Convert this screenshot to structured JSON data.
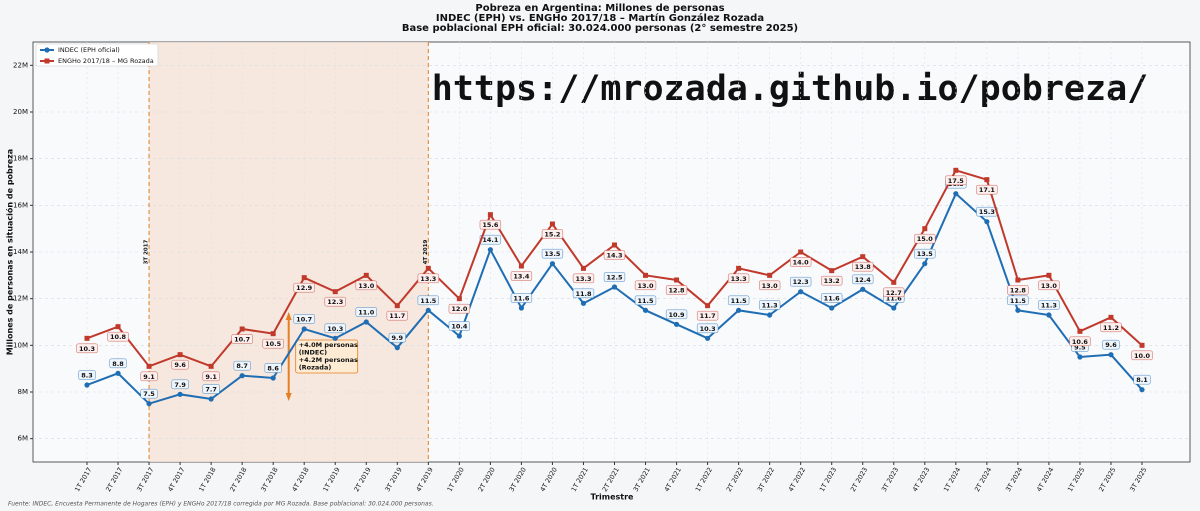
{
  "chart_data": {
    "type": "line",
    "title": "Pobreza en Argentina: Millones de personas",
    "subtitle": [
      "INDEC (EPH) vs. ENGHo 2017/18 – Martín González Rozada",
      "Base poblacional EPH oficial: 30.024.000 personas (2° semestre 2025)"
    ],
    "url": "https://mrozada.github.io/pobreza/",
    "xlabel": "Trimestre",
    "ylabel": "Millones de personas en situación de pobreza",
    "source": "Fuente: INDEC, Encuesta Permanente de Hogares (EPH) y ENGHo 2017/18 corregida por MG Rozada. Base poblacional: 30.024.000 personas.",
    "categories": [
      "1T 2017",
      "2T 2017",
      "3T 2017",
      "4T 2017",
      "1T 2018",
      "2T 2018",
      "3T 2018",
      "4T 2018",
      "1T 2019",
      "2T 2019",
      "3T 2019",
      "4T 2019",
      "1T 2020",
      "2T 2020",
      "3T 2020",
      "4T 2020",
      "1T 2021",
      "2T 2021",
      "3T 2021",
      "4T 2021",
      "1T 2022",
      "2T 2022",
      "3T 2022",
      "4T 2022",
      "1T 2023",
      "2T 2023",
      "3T 2023",
      "4T 2023",
      "1T 2024",
      "2T 2024",
      "3T 2024",
      "4T 2024",
      "1T 2025",
      "2T 2025",
      "3T 2025"
    ],
    "series": [
      {
        "name": "INDEC (EPH oficial)",
        "color": "#1f6db3",
        "marker": "circle",
        "values": [
          8.3,
          8.8,
          7.5,
          7.9,
          7.7,
          8.7,
          8.6,
          10.7,
          10.3,
          11.0,
          9.9,
          11.5,
          10.4,
          14.1,
          11.6,
          13.5,
          11.8,
          12.5,
          11.5,
          10.9,
          10.3,
          11.5,
          11.3,
          12.3,
          11.6,
          12.4,
          11.6,
          13.5,
          16.5,
          15.3,
          11.5,
          11.3,
          9.5,
          9.6,
          8.1
        ],
        "value_labels": [
          "8.3",
          "8.8",
          "7.5",
          "7.9",
          "7.7",
          "8.7",
          "8.6",
          "10.7",
          "10.3",
          "11.0",
          "9.9",
          "11.5",
          "10.4",
          "14.1",
          "11.6",
          "13.5",
          "11.8",
          "12.5",
          "11.5",
          "10.9",
          "10.3",
          "11.5",
          "11.3",
          "12.3",
          "11.6",
          "12.4",
          "11.6",
          "13.5",
          "16.5",
          "15.3",
          "11.5",
          "11.3",
          "9.5",
          "9.6",
          "8.1"
        ]
      },
      {
        "name": "ENGHo 2017/18 – MG Rozada",
        "color": "#c0392b",
        "marker": "square",
        "values": [
          10.3,
          10.8,
          9.1,
          9.6,
          9.1,
          10.7,
          10.5,
          12.9,
          12.3,
          13.0,
          11.7,
          13.3,
          12.0,
          15.6,
          13.4,
          15.2,
          13.3,
          14.3,
          13.0,
          12.8,
          11.7,
          13.3,
          13.0,
          14.0,
          13.2,
          13.8,
          12.7,
          15.0,
          17.5,
          17.1,
          12.8,
          13.0,
          10.6,
          11.2,
          10.0
        ],
        "value_labels": [
          "10.3",
          "10.8",
          "9.1",
          "9.6",
          "9.1",
          "10.7",
          "10.5",
          "12.9",
          "12.3",
          "13.0",
          "11.7",
          "13.3",
          "12.0",
          "15.6",
          "13.4",
          "15.2",
          "13.3",
          "14.3",
          "13.0",
          "12.8",
          "11.7",
          "13.3",
          "13.0",
          "14.0",
          "13.2",
          "13.8",
          "12.7",
          "15.0",
          "17.5",
          "17.1",
          "12.8",
          "13.0",
          "10.6",
          "11.2",
          "10.0"
        ]
      }
    ],
    "ylim": [
      5,
      23
    ],
    "yticks": [
      {
        "value": 6,
        "label": "6M"
      },
      {
        "value": 8,
        "label": "8M"
      },
      {
        "value": 10,
        "label": "10M"
      },
      {
        "value": 12,
        "label": "12M"
      },
      {
        "value": 14,
        "label": "14M"
      },
      {
        "value": 16,
        "label": "16M"
      },
      {
        "value": 18,
        "label": "18M"
      },
      {
        "value": 20,
        "label": "20M"
      },
      {
        "value": 22,
        "label": "22M"
      }
    ],
    "grid": true,
    "legend": "upper left",
    "vlines": [
      "3T 2017",
      "4T 2019"
    ],
    "shade_color": "#f5e4d6",
    "vline_color": "#e67e22",
    "annotation": [
      "+4.0M personas",
      "(INDEC)",
      "+4.2M personas",
      "(Rozada)"
    ]
  }
}
